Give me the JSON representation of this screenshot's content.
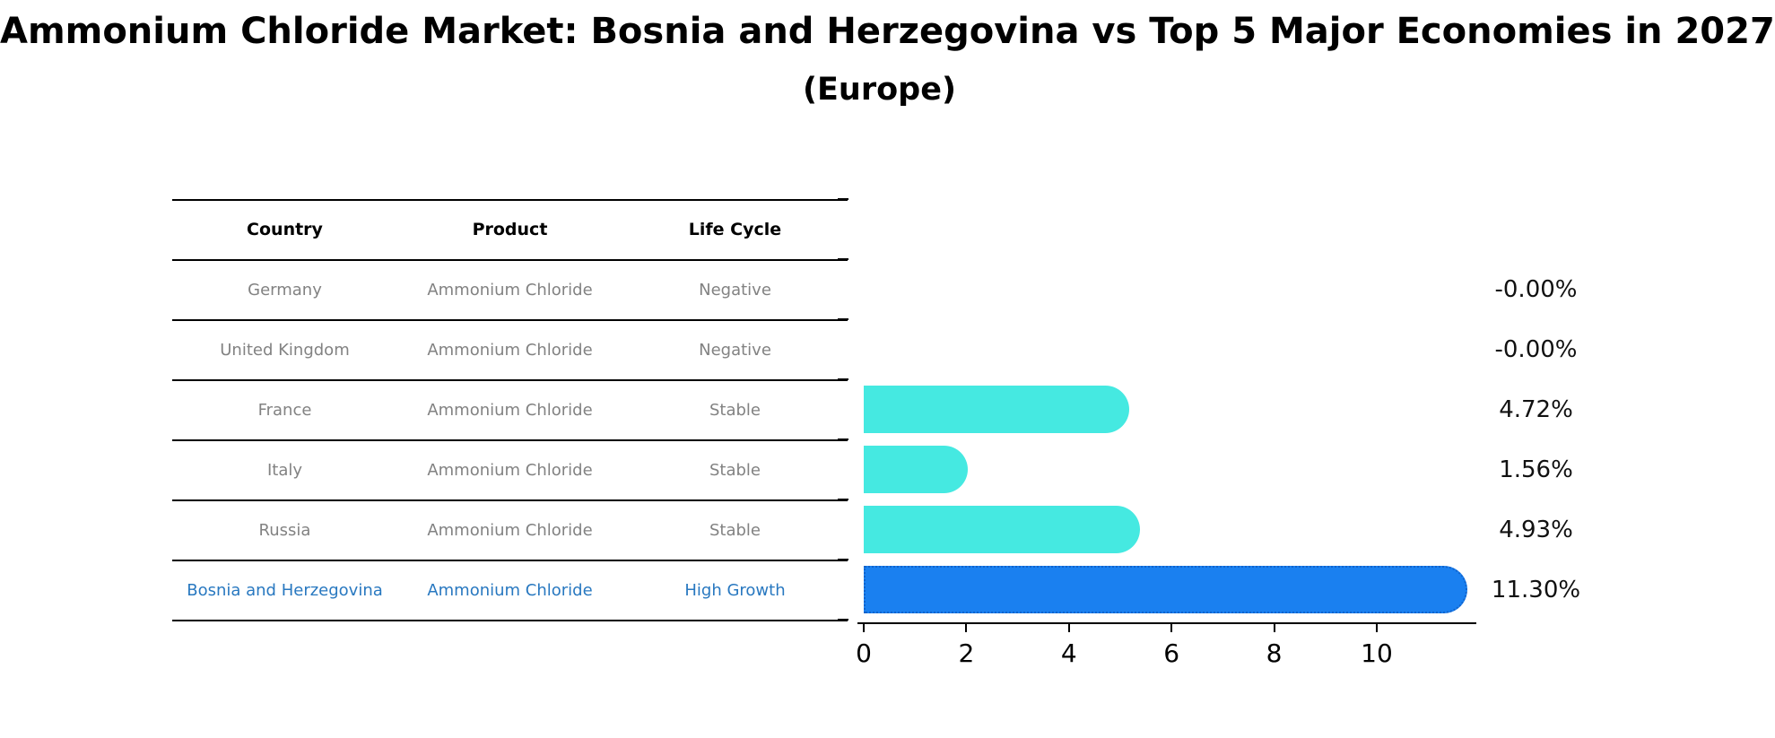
{
  "title": "Ammonium Chloride Market: Bosnia and Herzegovina vs Top 5 Major Economies in 2027",
  "subtitle": "(Europe)",
  "table": {
    "headers": [
      "Country",
      "Product",
      "Life Cycle"
    ],
    "rows": [
      {
        "country": "Germany",
        "product": "Ammonium Chloride",
        "life_cycle": "Negative",
        "highlight": false
      },
      {
        "country": "United Kingdom",
        "product": "Ammonium Chloride",
        "life_cycle": "Negative",
        "highlight": false
      },
      {
        "country": "France",
        "product": "Ammonium Chloride",
        "life_cycle": "Stable",
        "highlight": false
      },
      {
        "country": "Italy",
        "product": "Ammonium Chloride",
        "life_cycle": "Stable",
        "highlight": false
      },
      {
        "country": "Russia",
        "product": "Ammonium Chloride",
        "life_cycle": "Stable",
        "highlight": false
      },
      {
        "country": "Bosnia and Herzegovina",
        "product": "Ammonium Chloride",
        "life_cycle": "High Growth",
        "highlight": true
      }
    ]
  },
  "chart_data": {
    "type": "bar",
    "orientation": "horizontal",
    "title": "Ammonium Chloride Market: Bosnia and Herzegovina vs Top 5 Major Economies in 2027",
    "subtitle": "(Europe)",
    "categories": [
      "Germany",
      "United Kingdom",
      "France",
      "Italy",
      "Russia",
      "Bosnia and Herzegovina"
    ],
    "values": [
      -0.0,
      -0.0,
      4.72,
      1.56,
      4.93,
      11.3
    ],
    "labels": [
      "-0.00%",
      "-0.00%",
      "4.72%",
      "1.56%",
      "4.93%",
      "11.30%"
    ],
    "xticks": [
      0,
      2,
      4,
      6,
      8,
      10
    ],
    "xlim": [
      0,
      11.95
    ],
    "grid": false,
    "legend": "none",
    "highlight_index": 5
  },
  "colors": {
    "bar": "#45E9E1",
    "highlight_bar": "#1A80F0",
    "highlight_border": "#1063CC",
    "highlight_text": "#2878C0",
    "row_text": "#828282",
    "header_text": "#000000",
    "axis": "#000000",
    "value_label": "#111111"
  }
}
